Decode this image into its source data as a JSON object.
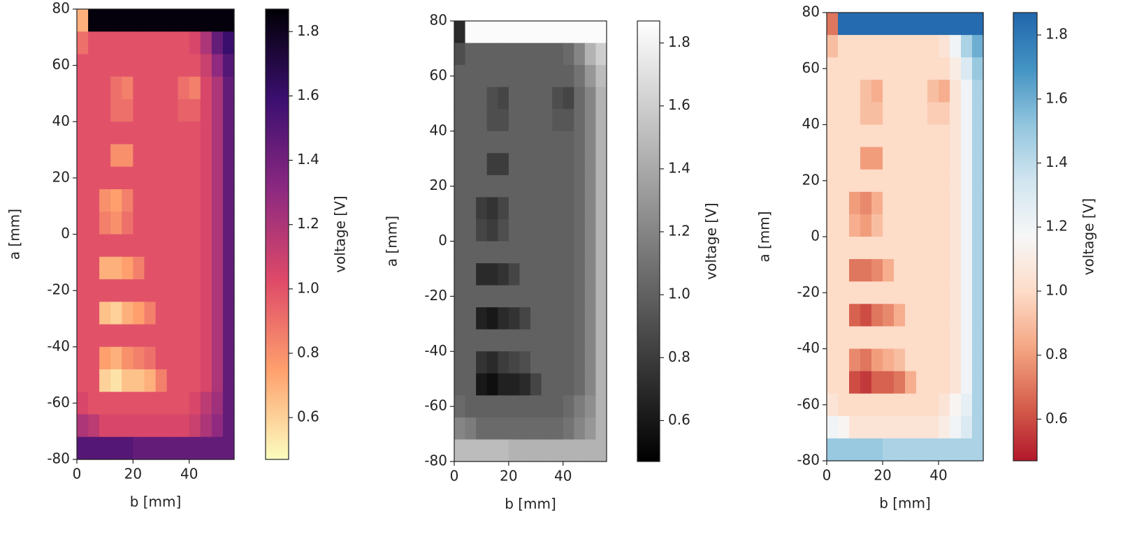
{
  "chart_data": [
    {
      "type": "heatmap",
      "xlabel": "b [mm]",
      "ylabel": "a [mm]",
      "colorbar_label": "voltage [V]",
      "xlim": [
        0,
        56
      ],
      "ylim": [
        -80,
        80
      ],
      "xticks": [
        0,
        20,
        40
      ],
      "yticks": [
        -80,
        -60,
        -40,
        -20,
        0,
        20,
        40,
        60,
        80
      ],
      "clim": [
        0.47,
        1.87
      ],
      "cticks": [
        0.6,
        0.8,
        {
          "value": 1,
          "label": "1.0"
        },
        1.2,
        1.4,
        1.6,
        1.8
      ],
      "colormap": [
        "#fcfdbf",
        "#fe9f6d",
        "#de4968",
        "#8c2981",
        "#3b0f70",
        "#000004"
      ],
      "z": [
        [
          0.7,
          1.85,
          1.85,
          1.85,
          1.85,
          1.85,
          1.85,
          1.85,
          1.85,
          1.85,
          1.85,
          1.85,
          1.85,
          1.85
        ],
        [
          0.9,
          1.0,
          1.0,
          1.0,
          1.0,
          1.0,
          1.0,
          1.0,
          1.0,
          1.0,
          1.05,
          1.2,
          1.45,
          1.6
        ],
        [
          1.0,
          1.0,
          1.0,
          1.0,
          1.0,
          1.0,
          1.0,
          1.0,
          1.0,
          1.0,
          1.0,
          1.1,
          1.3,
          1.5
        ],
        [
          1.0,
          1.0,
          1.0,
          0.9,
          0.85,
          1.0,
          1.0,
          1.0,
          1.0,
          0.9,
          0.85,
          1.05,
          1.2,
          1.45
        ],
        [
          1.0,
          1.0,
          1.0,
          0.9,
          0.9,
          1.0,
          1.0,
          1.0,
          1.0,
          0.95,
          0.95,
          1.05,
          1.2,
          1.45
        ],
        [
          1.0,
          1.0,
          1.0,
          1.0,
          1.0,
          1.0,
          1.0,
          1.0,
          1.0,
          1.0,
          1.0,
          1.05,
          1.2,
          1.45
        ],
        [
          1.0,
          1.0,
          1.0,
          0.8,
          0.8,
          1.0,
          1.0,
          1.0,
          1.0,
          1.0,
          1.0,
          1.05,
          1.2,
          1.45
        ],
        [
          1.0,
          1.0,
          1.0,
          1.0,
          1.0,
          1.0,
          1.0,
          1.0,
          1.0,
          1.0,
          1.0,
          1.05,
          1.2,
          1.45
        ],
        [
          1.0,
          1.0,
          0.8,
          0.75,
          0.85,
          1.0,
          1.0,
          1.0,
          1.0,
          1.0,
          1.0,
          1.05,
          1.2,
          1.45
        ],
        [
          1.0,
          1.0,
          0.85,
          0.8,
          0.9,
          1.0,
          1.0,
          1.0,
          1.0,
          1.0,
          1.0,
          1.05,
          1.2,
          1.45
        ],
        [
          1.0,
          1.0,
          1.0,
          1.0,
          1.0,
          1.0,
          1.0,
          1.0,
          1.0,
          1.0,
          1.0,
          1.05,
          1.2,
          1.45
        ],
        [
          1.0,
          1.0,
          0.7,
          0.7,
          0.75,
          0.85,
          1.0,
          1.0,
          1.0,
          1.0,
          1.0,
          1.05,
          1.2,
          1.45
        ],
        [
          1.0,
          1.0,
          1.0,
          1.0,
          1.0,
          1.0,
          1.0,
          1.0,
          1.0,
          1.0,
          1.0,
          1.05,
          1.2,
          1.45
        ],
        [
          1.0,
          1.0,
          0.65,
          0.6,
          0.7,
          0.75,
          0.85,
          1.0,
          1.0,
          1.0,
          1.0,
          1.05,
          1.2,
          1.45
        ],
        [
          1.0,
          1.0,
          1.0,
          1.0,
          1.0,
          1.0,
          1.0,
          1.0,
          1.0,
          1.0,
          1.0,
          1.05,
          1.2,
          1.45
        ],
        [
          1.0,
          1.0,
          0.75,
          0.7,
          0.8,
          0.85,
          0.9,
          1.0,
          1.0,
          1.0,
          1.0,
          1.05,
          1.2,
          1.45
        ],
        [
          1.0,
          1.0,
          0.6,
          0.55,
          0.65,
          0.65,
          0.7,
          0.85,
          1.0,
          1.0,
          1.0,
          1.05,
          1.2,
          1.45
        ],
        [
          1.05,
          1.0,
          1.0,
          1.0,
          1.0,
          1.0,
          1.0,
          1.0,
          1.0,
          1.0,
          1.05,
          1.15,
          1.25,
          1.45
        ],
        [
          1.2,
          1.15,
          1.05,
          1.05,
          1.05,
          1.05,
          1.05,
          1.05,
          1.05,
          1.05,
          1.1,
          1.2,
          1.3,
          1.45
        ],
        [
          1.5,
          1.5,
          1.5,
          1.5,
          1.5,
          1.45,
          1.45,
          1.45,
          1.45,
          1.45,
          1.45,
          1.45,
          1.45,
          1.45
        ]
      ]
    },
    {
      "type": "heatmap",
      "xlabel": "b [mm]",
      "ylabel": "a [mm]",
      "colorbar_label": "voltage [V]",
      "xlim": [
        0,
        56
      ],
      "ylim": [
        -80,
        80
      ],
      "xticks": [
        0,
        20,
        40
      ],
      "yticks": [
        -80,
        -60,
        -40,
        -20,
        0,
        20,
        40,
        60,
        80
      ],
      "clim": [
        0.47,
        1.87
      ],
      "cticks": [
        0.6,
        0.8,
        {
          "value": 1,
          "label": "1.0"
        },
        1.2,
        1.4,
        1.6,
        1.8
      ],
      "colormap": [
        "#000000",
        "#ffffff"
      ],
      "z": [
        [
          0.7,
          1.85,
          1.85,
          1.85,
          1.85,
          1.85,
          1.85,
          1.85,
          1.85,
          1.85,
          1.85,
          1.85,
          1.85,
          1.85
        ],
        [
          0.9,
          1.0,
          1.0,
          1.0,
          1.0,
          1.0,
          1.0,
          1.0,
          1.0,
          1.0,
          1.05,
          1.2,
          1.45,
          1.6
        ],
        [
          1.0,
          1.0,
          1.0,
          1.0,
          1.0,
          1.0,
          1.0,
          1.0,
          1.0,
          1.0,
          1.0,
          1.1,
          1.3,
          1.5
        ],
        [
          1.0,
          1.0,
          1.0,
          0.9,
          0.85,
          1.0,
          1.0,
          1.0,
          1.0,
          0.9,
          0.85,
          1.05,
          1.2,
          1.45
        ],
        [
          1.0,
          1.0,
          1.0,
          0.9,
          0.9,
          1.0,
          1.0,
          1.0,
          1.0,
          0.95,
          0.95,
          1.05,
          1.2,
          1.45
        ],
        [
          1.0,
          1.0,
          1.0,
          1.0,
          1.0,
          1.0,
          1.0,
          1.0,
          1.0,
          1.0,
          1.0,
          1.05,
          1.2,
          1.45
        ],
        [
          1.0,
          1.0,
          1.0,
          0.8,
          0.8,
          1.0,
          1.0,
          1.0,
          1.0,
          1.0,
          1.0,
          1.05,
          1.2,
          1.45
        ],
        [
          1.0,
          1.0,
          1.0,
          1.0,
          1.0,
          1.0,
          1.0,
          1.0,
          1.0,
          1.0,
          1.0,
          1.05,
          1.2,
          1.45
        ],
        [
          1.0,
          1.0,
          0.8,
          0.75,
          0.85,
          1.0,
          1.0,
          1.0,
          1.0,
          1.0,
          1.0,
          1.05,
          1.2,
          1.45
        ],
        [
          1.0,
          1.0,
          0.85,
          0.8,
          0.9,
          1.0,
          1.0,
          1.0,
          1.0,
          1.0,
          1.0,
          1.05,
          1.2,
          1.45
        ],
        [
          1.0,
          1.0,
          1.0,
          1.0,
          1.0,
          1.0,
          1.0,
          1.0,
          1.0,
          1.0,
          1.0,
          1.05,
          1.2,
          1.45
        ],
        [
          1.0,
          1.0,
          0.7,
          0.7,
          0.75,
          0.85,
          1.0,
          1.0,
          1.0,
          1.0,
          1.0,
          1.05,
          1.2,
          1.45
        ],
        [
          1.0,
          1.0,
          1.0,
          1.0,
          1.0,
          1.0,
          1.0,
          1.0,
          1.0,
          1.0,
          1.0,
          1.05,
          1.2,
          1.45
        ],
        [
          1.0,
          1.0,
          0.65,
          0.6,
          0.7,
          0.75,
          0.85,
          1.0,
          1.0,
          1.0,
          1.0,
          1.05,
          1.2,
          1.45
        ],
        [
          1.0,
          1.0,
          1.0,
          1.0,
          1.0,
          1.0,
          1.0,
          1.0,
          1.0,
          1.0,
          1.0,
          1.05,
          1.2,
          1.45
        ],
        [
          1.0,
          1.0,
          0.75,
          0.7,
          0.8,
          0.85,
          0.9,
          1.0,
          1.0,
          1.0,
          1.0,
          1.05,
          1.2,
          1.45
        ],
        [
          1.0,
          1.0,
          0.6,
          0.55,
          0.65,
          0.65,
          0.7,
          0.85,
          1.0,
          1.0,
          1.0,
          1.05,
          1.2,
          1.45
        ],
        [
          1.05,
          1.0,
          1.0,
          1.0,
          1.0,
          1.0,
          1.0,
          1.0,
          1.0,
          1.0,
          1.05,
          1.15,
          1.25,
          1.45
        ],
        [
          1.2,
          1.15,
          1.05,
          1.05,
          1.05,
          1.05,
          1.05,
          1.05,
          1.05,
          1.05,
          1.1,
          1.2,
          1.3,
          1.45
        ],
        [
          1.5,
          1.5,
          1.5,
          1.5,
          1.5,
          1.45,
          1.45,
          1.45,
          1.45,
          1.45,
          1.45,
          1.45,
          1.45,
          1.45
        ]
      ]
    },
    {
      "type": "heatmap",
      "xlabel": "b [mm]",
      "ylabel": "a [mm]",
      "colorbar_label": "voltage [V]",
      "xlim": [
        0,
        56
      ],
      "ylim": [
        -80,
        80
      ],
      "xticks": [
        0,
        20,
        40
      ],
      "yticks": [
        -80,
        -60,
        -40,
        -20,
        0,
        20,
        40,
        60,
        80
      ],
      "clim": [
        0.47,
        1.87
      ],
      "cticks": [
        0.6,
        0.8,
        {
          "value": 1,
          "label": "1.0"
        },
        1.2,
        1.4,
        1.6,
        1.8
      ],
      "colormap": [
        "#b2182b",
        "#d6604d",
        "#f4a582",
        "#fddbc7",
        "#f7f7f7",
        "#d1e5f0",
        "#92c5de",
        "#4393c3",
        "#2166ac"
      ],
      "z": [
        [
          0.7,
          1.85,
          1.85,
          1.85,
          1.85,
          1.85,
          1.85,
          1.85,
          1.85,
          1.85,
          1.85,
          1.85,
          1.85,
          1.85
        ],
        [
          0.9,
          1.0,
          1.0,
          1.0,
          1.0,
          1.0,
          1.0,
          1.0,
          1.0,
          1.0,
          1.05,
          1.2,
          1.45,
          1.6
        ],
        [
          1.0,
          1.0,
          1.0,
          1.0,
          1.0,
          1.0,
          1.0,
          1.0,
          1.0,
          1.0,
          1.0,
          1.1,
          1.3,
          1.5
        ],
        [
          1.0,
          1.0,
          1.0,
          0.9,
          0.85,
          1.0,
          1.0,
          1.0,
          1.0,
          0.9,
          0.85,
          1.05,
          1.2,
          1.45
        ],
        [
          1.0,
          1.0,
          1.0,
          0.9,
          0.9,
          1.0,
          1.0,
          1.0,
          1.0,
          0.95,
          0.95,
          1.05,
          1.2,
          1.45
        ],
        [
          1.0,
          1.0,
          1.0,
          1.0,
          1.0,
          1.0,
          1.0,
          1.0,
          1.0,
          1.0,
          1.0,
          1.05,
          1.2,
          1.45
        ],
        [
          1.0,
          1.0,
          1.0,
          0.8,
          0.8,
          1.0,
          1.0,
          1.0,
          1.0,
          1.0,
          1.0,
          1.05,
          1.2,
          1.45
        ],
        [
          1.0,
          1.0,
          1.0,
          1.0,
          1.0,
          1.0,
          1.0,
          1.0,
          1.0,
          1.0,
          1.0,
          1.05,
          1.2,
          1.45
        ],
        [
          1.0,
          1.0,
          0.8,
          0.75,
          0.85,
          1.0,
          1.0,
          1.0,
          1.0,
          1.0,
          1.0,
          1.05,
          1.2,
          1.45
        ],
        [
          1.0,
          1.0,
          0.85,
          0.8,
          0.9,
          1.0,
          1.0,
          1.0,
          1.0,
          1.0,
          1.0,
          1.05,
          1.2,
          1.45
        ],
        [
          1.0,
          1.0,
          1.0,
          1.0,
          1.0,
          1.0,
          1.0,
          1.0,
          1.0,
          1.0,
          1.0,
          1.05,
          1.2,
          1.45
        ],
        [
          1.0,
          1.0,
          0.7,
          0.7,
          0.75,
          0.85,
          1.0,
          1.0,
          1.0,
          1.0,
          1.0,
          1.05,
          1.2,
          1.45
        ],
        [
          1.0,
          1.0,
          1.0,
          1.0,
          1.0,
          1.0,
          1.0,
          1.0,
          1.0,
          1.0,
          1.0,
          1.05,
          1.2,
          1.45
        ],
        [
          1.0,
          1.0,
          0.65,
          0.6,
          0.7,
          0.75,
          0.85,
          1.0,
          1.0,
          1.0,
          1.0,
          1.05,
          1.2,
          1.45
        ],
        [
          1.0,
          1.0,
          1.0,
          1.0,
          1.0,
          1.0,
          1.0,
          1.0,
          1.0,
          1.0,
          1.0,
          1.05,
          1.2,
          1.45
        ],
        [
          1.0,
          1.0,
          0.75,
          0.7,
          0.8,
          0.85,
          0.9,
          1.0,
          1.0,
          1.0,
          1.0,
          1.05,
          1.2,
          1.45
        ],
        [
          1.0,
          1.0,
          0.6,
          0.55,
          0.65,
          0.65,
          0.7,
          0.85,
          1.0,
          1.0,
          1.0,
          1.05,
          1.2,
          1.45
        ],
        [
          1.05,
          1.0,
          1.0,
          1.0,
          1.0,
          1.0,
          1.0,
          1.0,
          1.0,
          1.0,
          1.05,
          1.15,
          1.25,
          1.45
        ],
        [
          1.2,
          1.15,
          1.05,
          1.05,
          1.05,
          1.05,
          1.05,
          1.05,
          1.05,
          1.05,
          1.1,
          1.2,
          1.3,
          1.45
        ],
        [
          1.5,
          1.5,
          1.5,
          1.5,
          1.5,
          1.45,
          1.45,
          1.45,
          1.45,
          1.45,
          1.45,
          1.45,
          1.45,
          1.45
        ]
      ]
    }
  ]
}
